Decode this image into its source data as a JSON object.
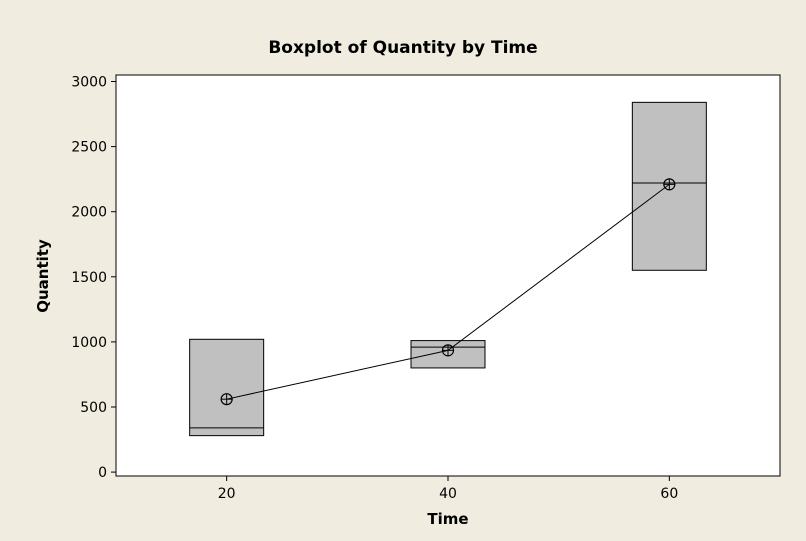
{
  "chart_data": {
    "type": "boxplot",
    "title": "Boxplot of Quantity by Time",
    "xlabel": "Time",
    "ylabel": "Quantity",
    "categories": [
      "20",
      "40",
      "60"
    ],
    "x": [
      20,
      40,
      60
    ],
    "xlim": [
      10,
      70
    ],
    "ylim": [
      -30,
      3050
    ],
    "yticks": [
      0,
      500,
      1000,
      1500,
      2000,
      2500,
      3000
    ],
    "boxes": [
      {
        "x": 20,
        "q1": 280,
        "median": 340,
        "q3": 1020,
        "mean": 560
      },
      {
        "x": 40,
        "q1": 800,
        "median": 960,
        "q3": 1010,
        "mean": 935
      },
      {
        "x": 60,
        "q1": 1550,
        "median": 2220,
        "q3": 2840,
        "mean": 2210
      }
    ],
    "mean_connect_line": true,
    "grid": false,
    "colors": {
      "background": "#f0ede0",
      "plot": "#ffffff",
      "box_fill": "#c0c0c0",
      "stroke": "#000000"
    }
  }
}
